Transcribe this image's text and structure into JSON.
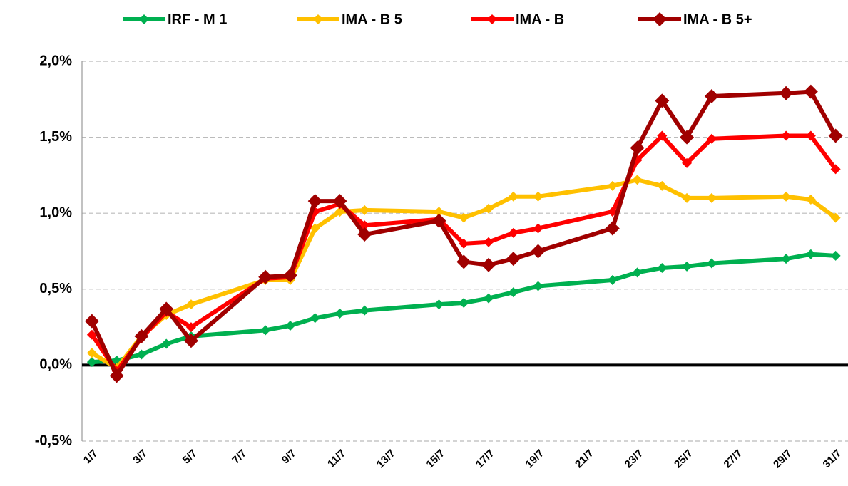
{
  "chart_data": {
    "type": "line",
    "x": [
      1,
      2,
      3,
      4,
      5,
      8,
      9,
      10,
      11,
      12,
      15,
      16,
      17,
      18,
      19,
      22,
      23,
      24,
      25,
      26,
      29,
      30,
      31
    ],
    "series": [
      {
        "name": "IRF - M 1",
        "color": "#00b050",
        "values": [
          0.02,
          0.03,
          0.07,
          0.14,
          0.19,
          0.23,
          0.26,
          0.31,
          0.34,
          0.36,
          0.4,
          0.41,
          0.44,
          0.48,
          0.52,
          0.56,
          0.61,
          0.64,
          0.65,
          0.67,
          0.7,
          0.73,
          0.72
        ]
      },
      {
        "name": "IMA - B 5",
        "color": "#ffc000",
        "values": [
          0.08,
          -0.02,
          0.19,
          0.33,
          0.4,
          0.56,
          0.56,
          0.9,
          1.01,
          1.02,
          1.01,
          0.97,
          1.03,
          1.11,
          1.11,
          1.18,
          1.22,
          1.18,
          1.1,
          1.1,
          1.11,
          1.09,
          0.97
        ]
      },
      {
        "name": "IMA - B",
        "color": "#ff0000",
        "values": [
          0.2,
          -0.04,
          0.18,
          0.35,
          0.25,
          0.57,
          0.58,
          1.01,
          1.06,
          0.92,
          0.96,
          0.8,
          0.81,
          0.87,
          0.9,
          1.01,
          1.35,
          1.51,
          1.33,
          1.49,
          1.51,
          1.51,
          1.29
        ]
      },
      {
        "name": "IMA - B 5+",
        "color": "#a00000",
        "values": [
          0.29,
          -0.07,
          0.19,
          0.37,
          0.16,
          0.58,
          0.59,
          1.08,
          1.08,
          0.86,
          0.95,
          0.68,
          0.66,
          0.7,
          0.75,
          0.9,
          1.43,
          1.74,
          1.5,
          1.77,
          1.79,
          1.8,
          1.51
        ]
      }
    ],
    "xlim": [
      0.6,
      31.5
    ],
    "xticks": [
      {
        "value": 1,
        "label": "1/7"
      },
      {
        "value": 3,
        "label": "3/7"
      },
      {
        "value": 5,
        "label": "5/7"
      },
      {
        "value": 7,
        "label": "7/7"
      },
      {
        "value": 9,
        "label": "9/7"
      },
      {
        "value": 11,
        "label": "11/7"
      },
      {
        "value": 13,
        "label": "13/7"
      },
      {
        "value": 15,
        "label": "15/7"
      },
      {
        "value": 17,
        "label": "17/7"
      },
      {
        "value": 19,
        "label": "19/7"
      },
      {
        "value": 21,
        "label": "21/7"
      },
      {
        "value": 23,
        "label": "23/7"
      },
      {
        "value": 25,
        "label": "25/7"
      },
      {
        "value": 27,
        "label": "27/7"
      },
      {
        "value": 29,
        "label": "29/7"
      },
      {
        "value": 31,
        "label": "31/7"
      }
    ],
    "ylim": [
      -0.5,
      2.0
    ],
    "yticks": [
      {
        "value": -0.5,
        "label": "-0,5%"
      },
      {
        "value": 0,
        "label": "0,0%"
      },
      {
        "value": 0.5,
        "label": "0,5%"
      },
      {
        "value": 1.0,
        "label": "1,0%"
      },
      {
        "value": 1.5,
        "label": "1,5%"
      },
      {
        "value": 2.0,
        "label": "2,0%"
      }
    ],
    "grid": true,
    "legend": "top"
  }
}
